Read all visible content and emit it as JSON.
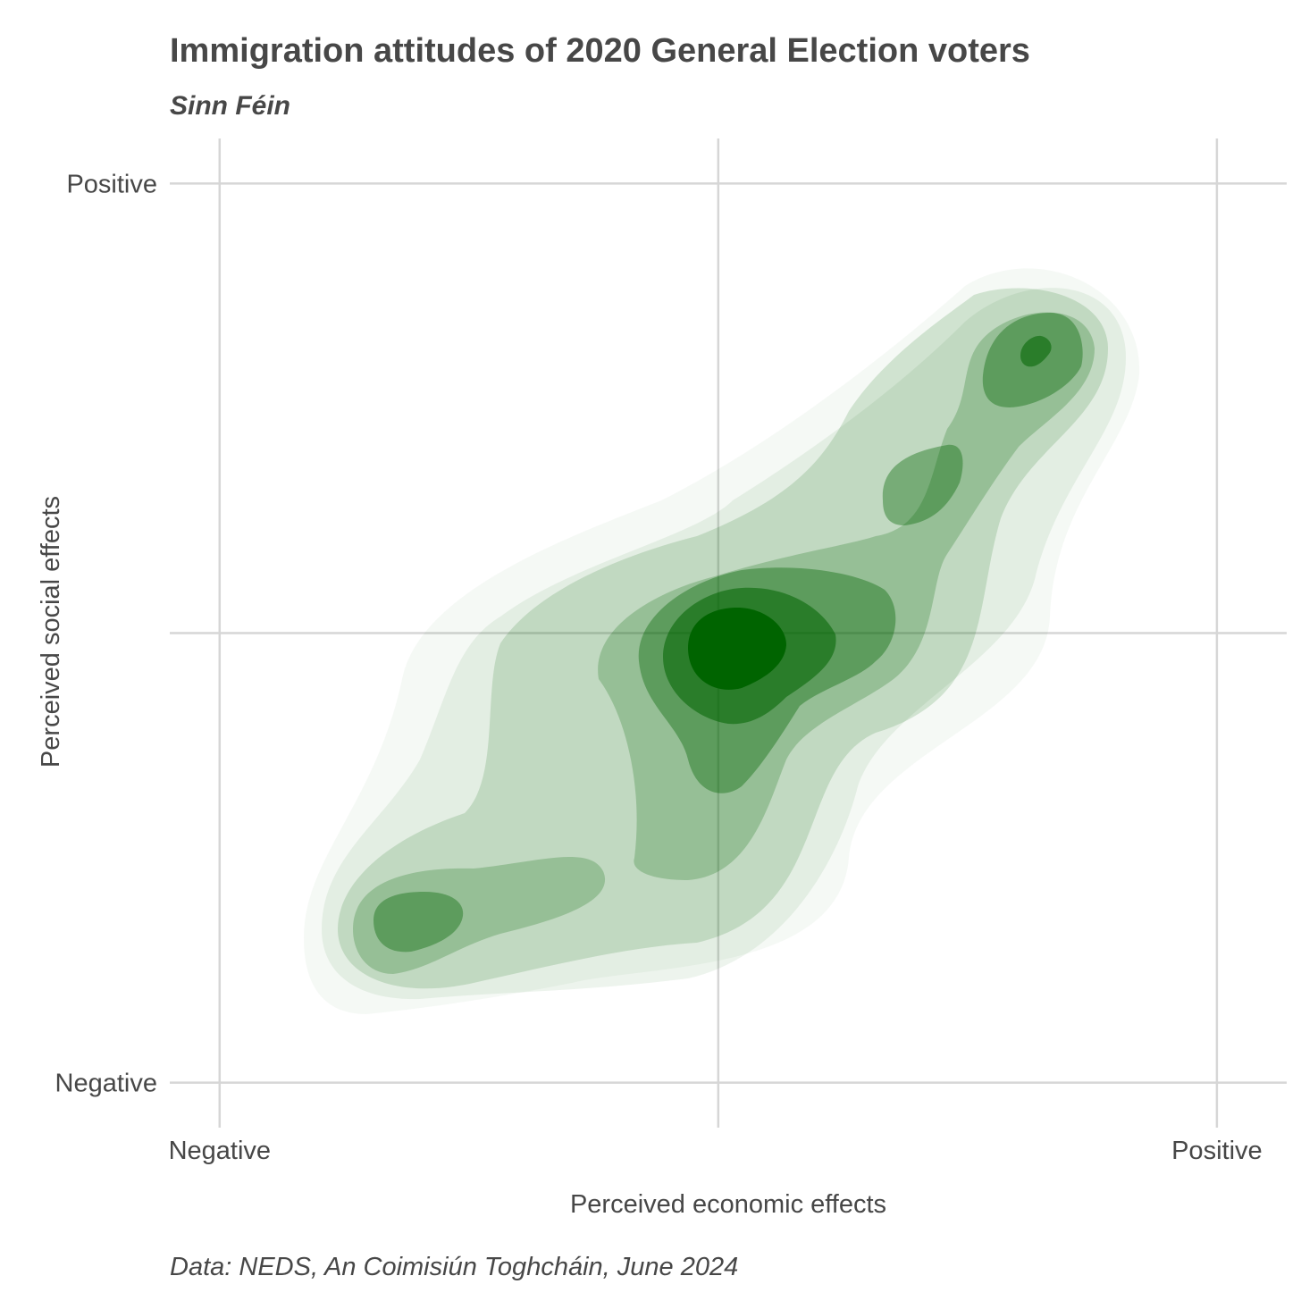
{
  "chart_data": {
    "type": "density_contour",
    "title": "Immigration attitudes of 2020 General Election voters",
    "subtitle": "Sinn Féin",
    "caption": "Data: NEDS, An Coimisiún Toghcháin, June 2024",
    "xlabel": "Perceived economic effects",
    "ylabel": "Perceived social effects",
    "x_ticks": [
      {
        "value": -1,
        "label": "Negative"
      },
      {
        "value": 0,
        "label": ""
      },
      {
        "value": 1,
        "label": "Positive"
      }
    ],
    "y_ticks": [
      {
        "value": -1,
        "label": "Negative"
      },
      {
        "value": 0,
        "label": ""
      },
      {
        "value": 1,
        "label": "Positive"
      }
    ],
    "xlim": [
      -1.1,
      1.14
    ],
    "ylim": [
      -1.1,
      1.1
    ],
    "grid": true,
    "legend": "none",
    "fill_color": "#006400",
    "density_modes": [
      {
        "x": 0.03,
        "y": 0.03,
        "relative_density": 1.0
      },
      {
        "x": 0.64,
        "y": 0.63,
        "relative_density": 0.75
      },
      {
        "x": 0.42,
        "y": 0.3,
        "relative_density": 0.5
      },
      {
        "x": -0.7,
        "y": -0.64,
        "relative_density": 0.5
      }
    ],
    "density_levels": 7
  }
}
